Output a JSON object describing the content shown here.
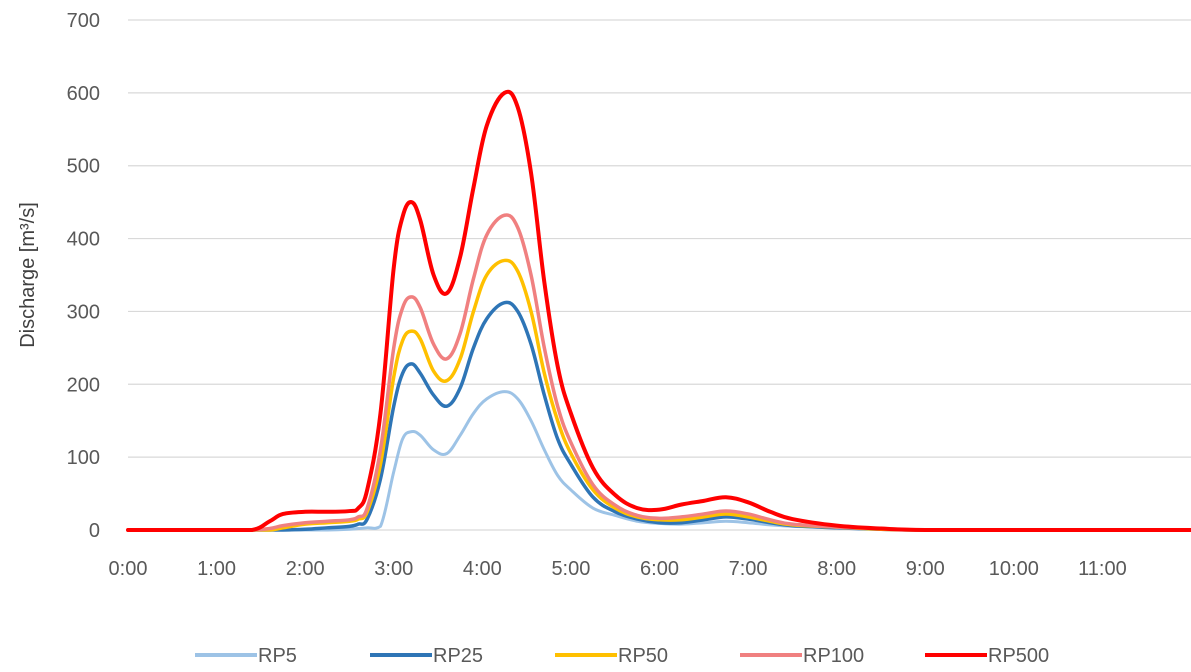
{
  "chart_data": {
    "type": "line",
    "title": "",
    "xlabel": "",
    "ylabel": "Discharge [m³/s]",
    "xlim": [
      0,
      12
    ],
    "ylim": [
      0,
      700
    ],
    "yticks": [
      0,
      100,
      200,
      300,
      400,
      500,
      600,
      700
    ],
    "xticks": [
      0,
      1,
      2,
      3,
      4,
      5,
      6,
      7,
      8,
      9,
      10,
      11
    ],
    "xtick_labels": [
      "0:00",
      "1:00",
      "2:00",
      "3:00",
      "4:00",
      "5:00",
      "6:00",
      "7:00",
      "8:00",
      "9:00",
      "10:00",
      "11:00"
    ],
    "grid": "horizontal",
    "legend": "bottom",
    "x": [
      0.0,
      1.0,
      1.4,
      1.6,
      1.75,
      2.0,
      2.25,
      2.5,
      2.6,
      2.7,
      2.85,
      3.0,
      3.1,
      3.2,
      3.3,
      3.45,
      3.6,
      3.75,
      3.9,
      4.05,
      4.25,
      4.4,
      4.55,
      4.7,
      4.85,
      5.0,
      5.25,
      5.5,
      5.75,
      6.0,
      6.25,
      6.5,
      6.75,
      7.0,
      7.25,
      7.5,
      8.0,
      8.5,
      9.0,
      10.0,
      11.0,
      12.0
    ],
    "series": [
      {
        "name": "RP5",
        "color": "#9dc3e6",
        "width": 3,
        "values": [
          0,
          0,
          0,
          0,
          0,
          0,
          0,
          1,
          2,
          3,
          5,
          80,
          125,
          135,
          130,
          110,
          105,
          130,
          160,
          180,
          190,
          180,
          150,
          110,
          75,
          55,
          30,
          20,
          12,
          9,
          8,
          10,
          12,
          10,
          7,
          5,
          3,
          1,
          0,
          0,
          0,
          0
        ]
      },
      {
        "name": "RP25",
        "color": "#2e75b6",
        "width": 3.5,
        "values": [
          0,
          0,
          0,
          0,
          0,
          1,
          3,
          5,
          8,
          15,
          70,
          170,
          215,
          228,
          215,
          185,
          170,
          195,
          250,
          290,
          312,
          300,
          255,
          185,
          125,
          90,
          45,
          25,
          15,
          10,
          10,
          14,
          18,
          15,
          10,
          6,
          3,
          1,
          0,
          0,
          0,
          0
        ]
      },
      {
        "name": "RP50",
        "color": "#ffc000",
        "width": 3.5,
        "values": [
          0,
          0,
          0,
          0,
          3,
          8,
          10,
          12,
          15,
          25,
          90,
          210,
          260,
          273,
          262,
          218,
          205,
          235,
          300,
          350,
          370,
          355,
          300,
          215,
          150,
          105,
          55,
          30,
          18,
          14,
          14,
          18,
          22,
          18,
          12,
          7,
          4,
          1,
          0,
          0,
          0,
          0
        ]
      },
      {
        "name": "RP100",
        "color": "#f08080",
        "width": 3.5,
        "values": [
          0,
          0,
          0,
          2,
          6,
          10,
          12,
          14,
          18,
          30,
          110,
          250,
          305,
          320,
          305,
          255,
          235,
          270,
          345,
          405,
          432,
          415,
          350,
          250,
          170,
          120,
          62,
          34,
          20,
          16,
          18,
          22,
          26,
          22,
          14,
          8,
          4,
          2,
          0,
          0,
          0,
          0
        ]
      },
      {
        "name": "RP500",
        "color": "#ff0000",
        "width": 4,
        "values": [
          0,
          0,
          0,
          12,
          22,
          25,
          25,
          26,
          30,
          55,
          160,
          360,
          430,
          450,
          425,
          350,
          325,
          375,
          470,
          555,
          600,
          580,
          490,
          340,
          225,
          160,
          85,
          48,
          30,
          28,
          35,
          40,
          45,
          38,
          25,
          15,
          6,
          2,
          0,
          0,
          0,
          0
        ]
      }
    ]
  }
}
